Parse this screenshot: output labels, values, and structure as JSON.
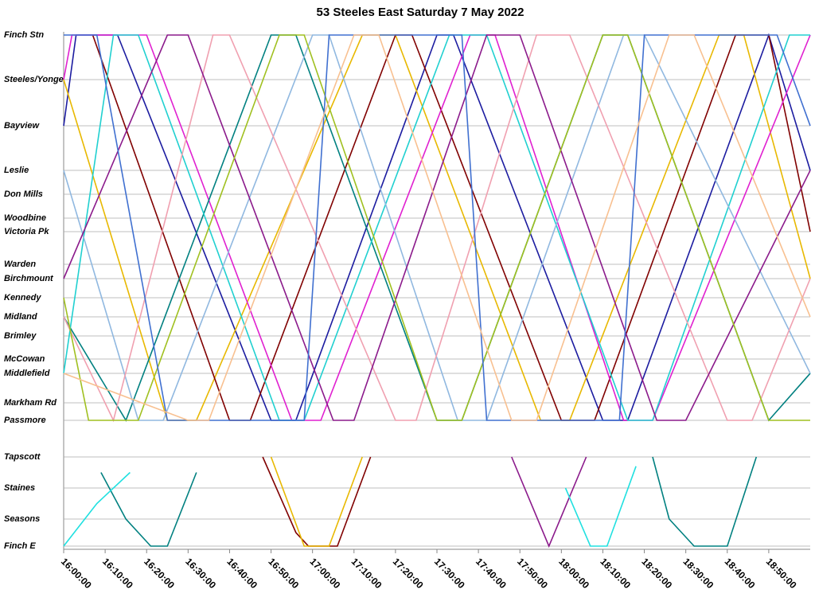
{
  "chart_data": {
    "type": "line",
    "title": "53 Steeles East Saturday 7 May 2022",
    "stops": [
      "Finch Stn",
      "Steeles/Yonge",
      "Bayview",
      "Leslie",
      "Don Mills",
      "Woodbine",
      "Victoria Pk",
      "Warden",
      "Birchmount",
      "Kennedy",
      "Midland",
      "Brimley",
      "McCowan",
      "Middlefield",
      "Markham Rd",
      "Passmore",
      "Tapscott",
      "Staines",
      "Seasons",
      "Finch E"
    ],
    "xlim": [
      960,
      1140
    ],
    "xticks": [
      {
        "value": 960,
        "label": "16:00:00"
      },
      {
        "value": 970,
        "label": "16:10:00"
      },
      {
        "value": 980,
        "label": "16:20:00"
      },
      {
        "value": 990,
        "label": "16:30:00"
      },
      {
        "value": 1000,
        "label": "16:40:00"
      },
      {
        "value": 1010,
        "label": "16:50:00"
      },
      {
        "value": 1020,
        "label": "17:00:00"
      },
      {
        "value": 1030,
        "label": "17:10:00"
      },
      {
        "value": 1040,
        "label": "17:20:00"
      },
      {
        "value": 1050,
        "label": "17:30:00"
      },
      {
        "value": 1060,
        "label": "17:40:00"
      },
      {
        "value": 1070,
        "label": "17:50:00"
      },
      {
        "value": 1080,
        "label": "18:00:00"
      },
      {
        "value": 1090,
        "label": "18:10:00"
      },
      {
        "value": 1100,
        "label": "18:20:00"
      },
      {
        "value": 1110,
        "label": "18:30:00"
      },
      {
        "value": 1120,
        "label": "18:40:00"
      },
      {
        "value": 1130,
        "label": "18:50:00"
      }
    ],
    "series": [
      {
        "color": "#1c1ca0",
        "x": [
          960,
          963,
          973,
          1010,
          1016,
          1050,
          1054,
          1090,
          1096,
          1130,
          1140
        ],
        "values": [
          2,
          0,
          0,
          15,
          15,
          0,
          0,
          15,
          15,
          0,
          3
        ]
      },
      {
        "color": "#e8b800",
        "x": [
          960,
          985,
          992,
          1032,
          1040,
          1075,
          1082,
          1118,
          1124,
          1140
        ],
        "values": [
          1,
          15,
          15,
          0,
          0,
          15,
          15,
          0,
          0,
          8
        ]
      },
      {
        "color": "#800000",
        "x": [
          967,
          1000,
          1005,
          1040,
          1044,
          1080,
          1088,
          1122,
          1130,
          1140
        ],
        "values": [
          0,
          15,
          15,
          0,
          0,
          15,
          15,
          0,
          0,
          6
        ]
      },
      {
        "color": "#e020d0",
        "x": [
          960,
          962,
          980,
          1015,
          1022,
          1058,
          1064,
          1095,
          1102,
          1140
        ],
        "values": [
          1,
          0,
          0,
          15,
          15,
          0,
          0,
          15,
          15,
          0
        ]
      },
      {
        "color": "#008080",
        "x": [
          960,
          975,
          1010,
          1016,
          1050,
          1056,
          1090,
          1096,
          1130,
          1140
        ],
        "values": [
          10,
          15,
          0,
          0,
          15,
          15,
          0,
          0,
          15,
          13
        ]
      },
      {
        "color": "#20d0d0",
        "x": [
          960,
          972,
          978,
          1012,
          1018,
          1053,
          1062,
          1096,
          1102,
          1135,
          1140
        ],
        "values": [
          13,
          0,
          0,
          15,
          15,
          0,
          0,
          15,
          15,
          0,
          0
        ]
      },
      {
        "color": "#90b8e0",
        "x": [
          960,
          978,
          984,
          1020,
          1024,
          1055,
          1062,
          1095,
          1100,
          1140
        ],
        "values": [
          3,
          15,
          15,
          0,
          0,
          15,
          15,
          0,
          0,
          13
        ]
      },
      {
        "color": "#f0a0b0",
        "x": [
          960,
          972,
          996,
          1000,
          1040,
          1045,
          1074,
          1082,
          1120,
          1126,
          1140
        ],
        "values": [
          10,
          15,
          0,
          0,
          15,
          15,
          0,
          0,
          15,
          15,
          8
        ]
      },
      {
        "color": "#8b1a8b",
        "x": [
          960,
          985,
          990,
          1025,
          1030,
          1062,
          1070,
          1103,
          1110,
          1140
        ],
        "values": [
          8,
          0,
          0,
          15,
          15,
          0,
          0,
          15,
          15,
          3
        ]
      },
      {
        "color": "#a0c020",
        "x": [
          960,
          966,
          978,
          1012,
          1018,
          1050,
          1056,
          1090,
          1096,
          1130,
          1140
        ],
        "values": [
          9,
          15,
          15,
          0,
          0,
          15,
          15,
          0,
          0,
          15,
          15
        ]
      },
      {
        "color": "#4070d0",
        "x": [
          960,
          968,
          985,
          1018,
          1024,
          1056,
          1062,
          1094,
          1100,
          1132,
          1140
        ],
        "values": [
          0,
          0,
          15,
          15,
          0,
          0,
          15,
          15,
          0,
          0,
          2
        ]
      },
      {
        "color": "#f8c090",
        "x": [
          960,
          990,
          995,
          1030,
          1036,
          1068,
          1074,
          1106,
          1112,
          1140
        ],
        "values": [
          13,
          15,
          15,
          0,
          0,
          15,
          15,
          0,
          0,
          10
        ]
      },
      {
        "color": "#008080",
        "x": [
          969,
          975,
          981,
          985,
          992
        ],
        "values": [
          16.5,
          18,
          19,
          19,
          16.5
        ]
      },
      {
        "color": "#20e0e0",
        "x": [
          960,
          968,
          976
        ],
        "values": [
          19,
          17.5,
          16.5
        ]
      },
      {
        "color": "#800000",
        "x": [
          1008,
          1016,
          1019,
          1026,
          1034
        ],
        "values": [
          16,
          18.5,
          19,
          19,
          16
        ]
      },
      {
        "color": "#e8b800",
        "x": [
          1010,
          1018,
          1024,
          1032
        ],
        "values": [
          16,
          19,
          19,
          16
        ]
      },
      {
        "color": "#8b1a8b",
        "x": [
          1068,
          1077,
          1086
        ],
        "values": [
          16,
          19,
          16
        ]
      },
      {
        "color": "#20e0e0",
        "x": [
          1081,
          1087,
          1091,
          1098
        ],
        "values": [
          17,
          19,
          19,
          16.3
        ]
      },
      {
        "color": "#008080",
        "x": [
          1102,
          1106,
          1112,
          1120,
          1127
        ],
        "values": [
          16,
          18,
          19,
          19,
          16
        ]
      }
    ]
  }
}
